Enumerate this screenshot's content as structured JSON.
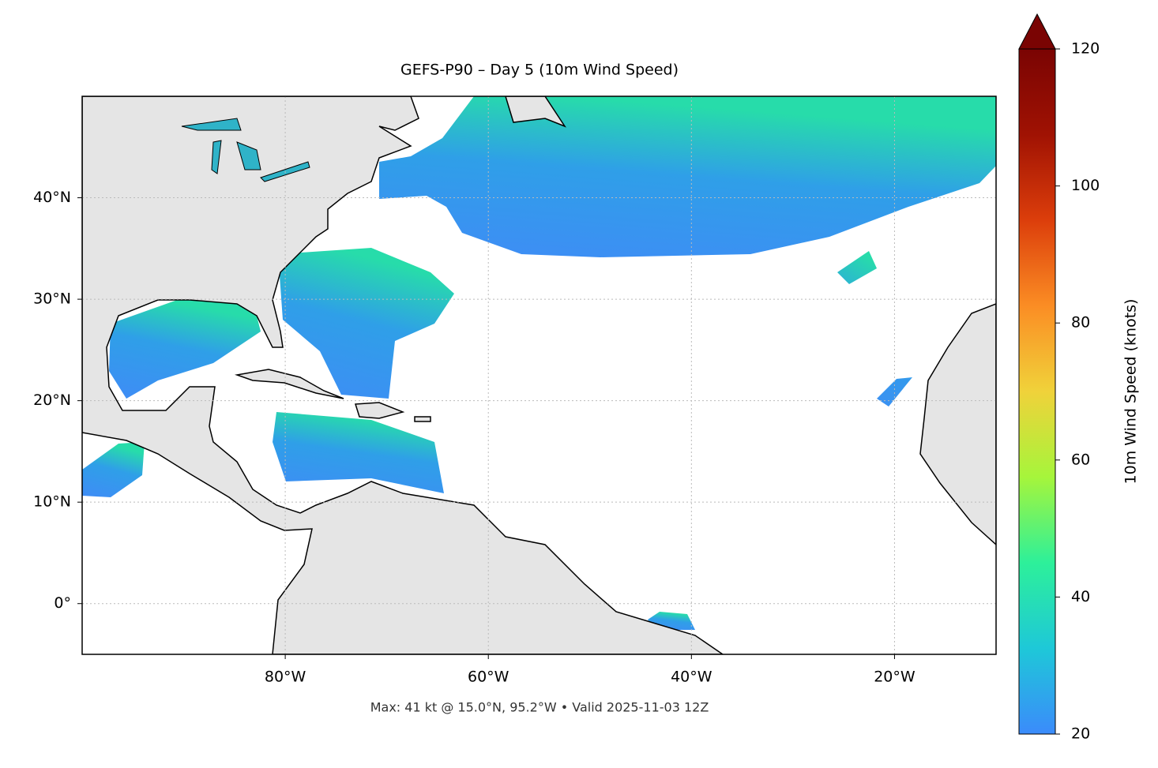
{
  "chart_data": {
    "type": "map",
    "title": "GEFS-P90 – Day 5 (10m Wind Speed)",
    "annotation": "Max: 41 kt @ 15.0°N, 95.2°W • Valid 2025-11-03 12Z",
    "xlim": [
      -100,
      -10
    ],
    "ylim": [
      -5,
      50
    ],
    "xticks": [
      {
        "value": -80,
        "label": "80°W"
      },
      {
        "value": -60,
        "label": "60°W"
      },
      {
        "value": -40,
        "label": "40°W"
      },
      {
        "value": -20,
        "label": "20°W"
      }
    ],
    "yticks": [
      {
        "value": 0,
        "label": "0°"
      },
      {
        "value": 10,
        "label": "10°N"
      },
      {
        "value": 20,
        "label": "20°N"
      },
      {
        "value": 30,
        "label": "30°N"
      },
      {
        "value": 40,
        "label": "40°N"
      }
    ],
    "grid": true,
    "colorbar": {
      "label": "10m Wind Speed (knots)",
      "lim": [
        20,
        120
      ],
      "ticks": [
        20,
        40,
        60,
        80,
        100,
        120
      ],
      "colors": [
        "#3b8bfb",
        "#1ec8d8",
        "#2df09a",
        "#a6f53b",
        "#f0d23a",
        "#fb8d24",
        "#dc3e0b",
        "#a01203",
        "#7a0403"
      ]
    }
  }
}
